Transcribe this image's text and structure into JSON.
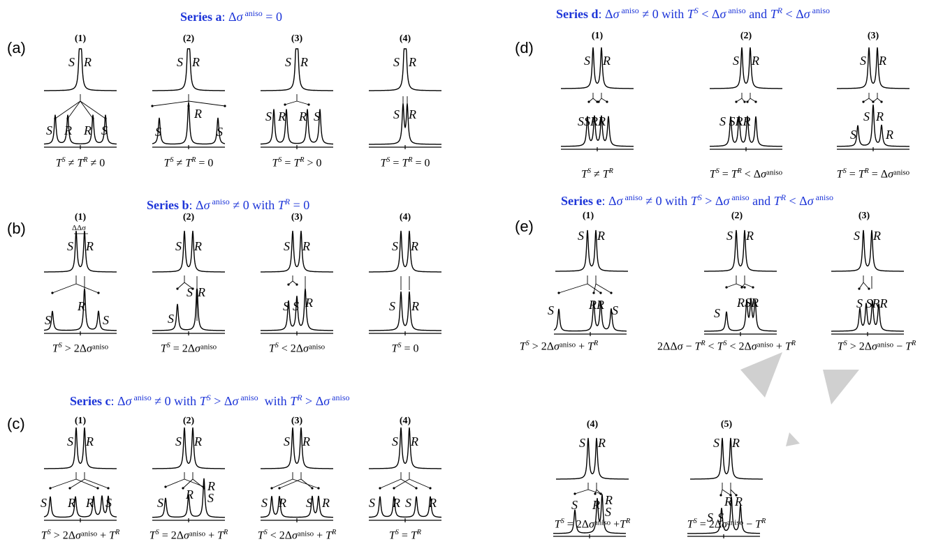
{
  "headers": {
    "a": {
      "label": "Series a",
      "rest": ": Δσ aniso = 0"
    },
    "b": {
      "label": "Series b",
      "rest": ": Δσ aniso ≠ 0 with T R = 0"
    },
    "c": {
      "label": "Series c",
      "rest": ": Δσ aniso ≠ 0 with T S > Δσ aniso  with T R > Δσ aniso"
    },
    "d": {
      "label": "Series d",
      "rest": ": Δσ aniso ≠ 0 with T S < Δσ aniso and T R < Δσ aniso"
    },
    "e": {
      "label": "Series e",
      "rest": ": Δσ aniso ≠ 0 with T S > Δσ aniso and T R < Δσ aniso"
    }
  },
  "panel_labels": [
    "(a)",
    "(b)",
    "(c)",
    "(d)",
    "(e)"
  ],
  "panels": {
    "a": [
      {
        "num": "(1)",
        "top": [
          "S",
          "R"
        ],
        "bottom": [
          "S",
          "R",
          "R",
          "S"
        ],
        "cond": "TS ≠ TR ≠ 0"
      },
      {
        "num": "(2)",
        "top": [
          "S",
          "R"
        ],
        "bottom": [
          "S",
          "R",
          "S"
        ],
        "cond": "TS ≠ TR = 0"
      },
      {
        "num": "(3)",
        "top": [
          "S",
          "R"
        ],
        "bottom": [
          "S",
          "R",
          "R",
          "S"
        ],
        "cond": "TS = TR > 0"
      },
      {
        "num": "(4)",
        "top": [
          "S",
          "R"
        ],
        "bottom": [
          "S",
          "R"
        ],
        "cond": "TS = TR = 0"
      }
    ],
    "b": [
      {
        "num": "(1)",
        "delta": "ΔΔσ",
        "top": [
          "S",
          "R"
        ],
        "bottom": [
          "S",
          "R",
          "S"
        ],
        "cond": "TS > 2Δσaniso"
      },
      {
        "num": "(2)",
        "top": [
          "S",
          "R"
        ],
        "bottom": [
          "S",
          "R"
        ],
        "cond": "TS = 2Δσaniso"
      },
      {
        "num": "(3)",
        "top": [
          "S",
          "R"
        ],
        "bottom": [
          "S",
          "S",
          "R"
        ],
        "cond": "TS < 2Δσaniso"
      },
      {
        "num": "(4)",
        "top": [
          "S",
          "R"
        ],
        "bottom": [
          "S",
          "R"
        ],
        "cond": "TS = 0"
      }
    ],
    "c": [
      {
        "num": "(1)",
        "top": [
          "S",
          "R"
        ],
        "bottom": [
          "S",
          "R",
          "R",
          "S"
        ],
        "cond": "TS > 2Δσaniso + TR"
      },
      {
        "num": "(2)",
        "top": [
          "S",
          "R"
        ],
        "bottom": [
          "S",
          "R",
          "R",
          "S"
        ],
        "cond": "TS = 2Δσaniso + TR"
      },
      {
        "num": "(3)",
        "top": [
          "S",
          "R"
        ],
        "bottom": [
          "S",
          "R",
          "S",
          "R"
        ],
        "cond": "TS < 2Δσaniso + TR"
      },
      {
        "num": "(4)",
        "top": [
          "S",
          "R"
        ],
        "bottom": [
          "S",
          "R",
          "S",
          "R"
        ],
        "cond": "TS = TR"
      }
    ],
    "d": [
      {
        "num": "(1)",
        "top": [
          "S",
          "R"
        ],
        "bottom": [
          "SSRR"
        ],
        "cond": "TS ≠ TR"
      },
      {
        "num": "(2)",
        "top": [
          "S",
          "R"
        ],
        "bottom": [
          "S SRR"
        ],
        "cond": "TS = TR < Δσaniso"
      },
      {
        "num": "(3)",
        "top": [
          "S",
          "R"
        ],
        "bottom": [
          "S",
          "R",
          "S",
          "R"
        ],
        "cond": "TS = TR = Δσaniso"
      }
    ],
    "e": [
      {
        "num": "(1)",
        "top": [
          "S",
          "R"
        ],
        "bottom": [
          "S",
          "RR",
          "S"
        ],
        "cond": "TS > 2Δσaniso + TR"
      },
      {
        "num": "(2)",
        "top": [
          "S",
          "R"
        ],
        "bottom": [
          "S",
          "RSR"
        ],
        "cond": "2ΔΔσ − TR < TS < 2Δσaniso + TR"
      },
      {
        "num": "(3)",
        "top": [
          "S",
          "R"
        ],
        "bottom": [
          "S SRR"
        ],
        "cond": "TS > 2Δσaniso − TR"
      },
      {
        "num": "(4)",
        "top": [
          "S",
          "R"
        ],
        "bottom": [
          "S",
          "R",
          "R",
          "S"
        ],
        "cond": "TS = 2Δσaniso +TR"
      },
      {
        "num": "(5)",
        "top": [
          "S",
          "R"
        ],
        "bottom": [
          "R",
          "R",
          "S",
          "S"
        ],
        "cond": "TS = 2Δσaniso − TR"
      }
    ]
  },
  "watermark_color": "#d0d0d0",
  "header_color": "#1d35d8"
}
